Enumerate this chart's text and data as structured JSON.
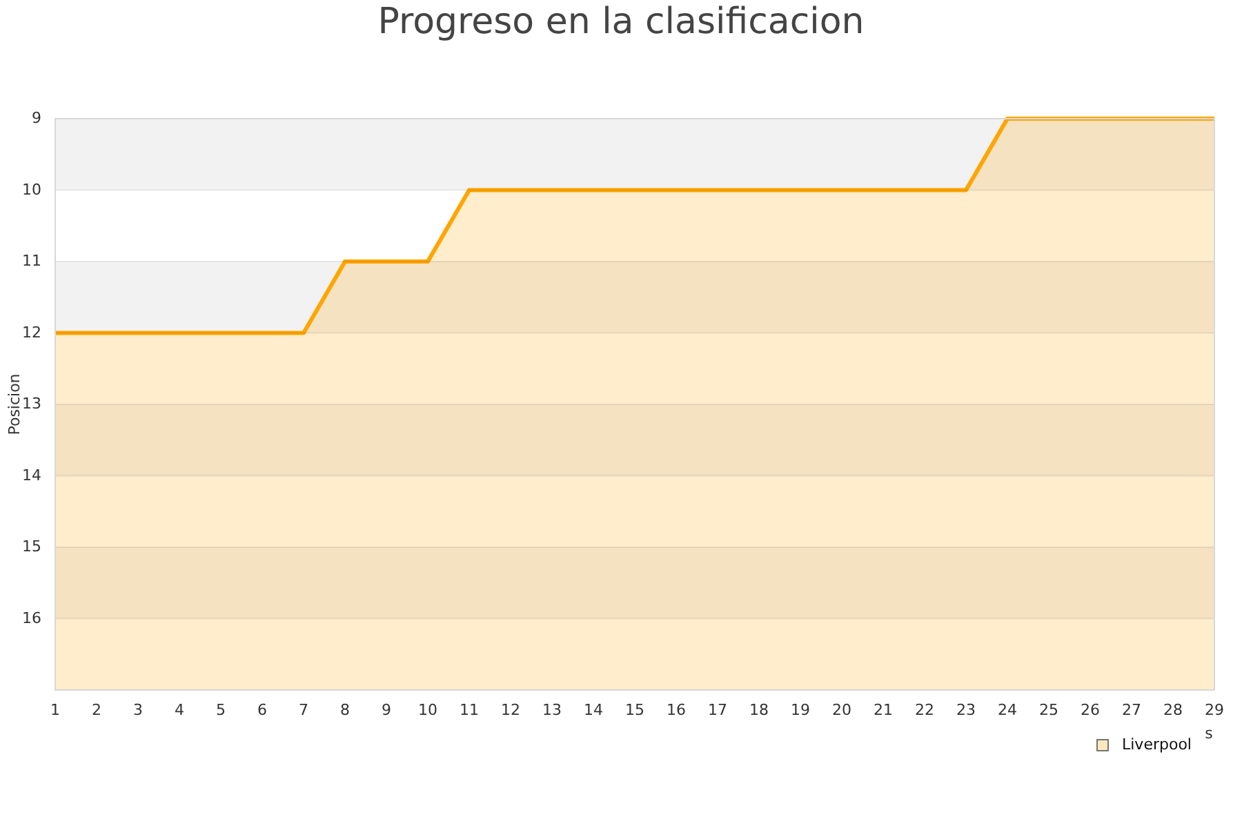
{
  "chart_data": {
    "type": "area",
    "title": "Progreso en la clasificacion",
    "xlabel": "s",
    "ylabel": "Posicion",
    "x": [
      1,
      2,
      3,
      4,
      5,
      6,
      7,
      8,
      9,
      10,
      11,
      12,
      13,
      14,
      15,
      16,
      17,
      18,
      19,
      20,
      21,
      22,
      23,
      24,
      25,
      26,
      27,
      28,
      29
    ],
    "series": [
      {
        "name": "Liverpool",
        "color": "#ffa500",
        "values": [
          12,
          12,
          12,
          12,
          12,
          12,
          12,
          11,
          11,
          11,
          10,
          10,
          10,
          10,
          10,
          10,
          10,
          10,
          10,
          10,
          10,
          10,
          10,
          9,
          9,
          9,
          9,
          9,
          9
        ]
      }
    ],
    "xlim": [
      1,
      29
    ],
    "xticks": [
      1,
      2,
      3,
      4,
      5,
      6,
      7,
      8,
      9,
      10,
      11,
      12,
      13,
      14,
      15,
      16,
      17,
      18,
      19,
      20,
      21,
      22,
      23,
      24,
      25,
      26,
      27,
      28,
      29
    ],
    "ylim": [
      17,
      9
    ],
    "yticks": [
      9,
      10,
      11,
      12,
      13,
      14,
      15,
      16
    ],
    "grid": "y",
    "legend": "bottom right"
  }
}
